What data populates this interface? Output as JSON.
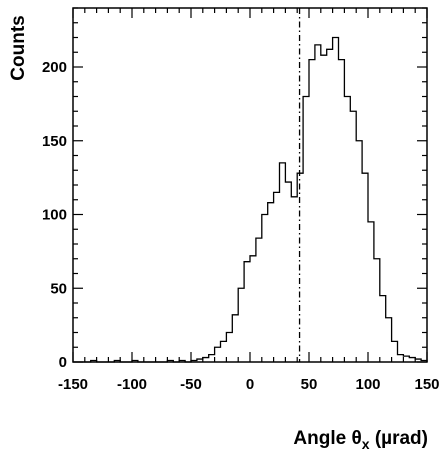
{
  "chart_data": {
    "type": "histogram",
    "title": "",
    "xlabel": "Angle θx (µrad)",
    "xlabel_parts": {
      "main": "Angle θ",
      "sub": "x",
      "unit": " (µrad)"
    },
    "ylabel": "Counts",
    "xlim": [
      -150,
      150
    ],
    "ylim": [
      0,
      240
    ],
    "x_ticks": [
      -150,
      -100,
      -50,
      0,
      50,
      100,
      150
    ],
    "y_ticks": [
      0,
      50,
      100,
      150,
      200
    ],
    "bin_width": 5,
    "bin_edges_start": -150,
    "values": [
      0,
      0,
      0,
      1,
      0,
      0,
      0,
      1,
      0,
      0,
      1,
      0,
      0,
      0,
      0,
      0,
      1,
      0,
      1,
      0,
      1,
      2,
      3,
      5,
      10,
      14,
      20,
      32,
      50,
      68,
      72,
      84,
      100,
      108,
      115,
      135,
      122,
      112,
      128,
      180,
      205,
      215,
      208,
      212,
      220,
      205,
      180,
      170,
      150,
      128,
      95,
      70,
      45,
      30,
      14,
      5,
      4,
      3,
      2,
      1
    ],
    "reference_line": {
      "x": 42,
      "style": "dash-dot"
    },
    "grid": false,
    "legend": "none"
  }
}
